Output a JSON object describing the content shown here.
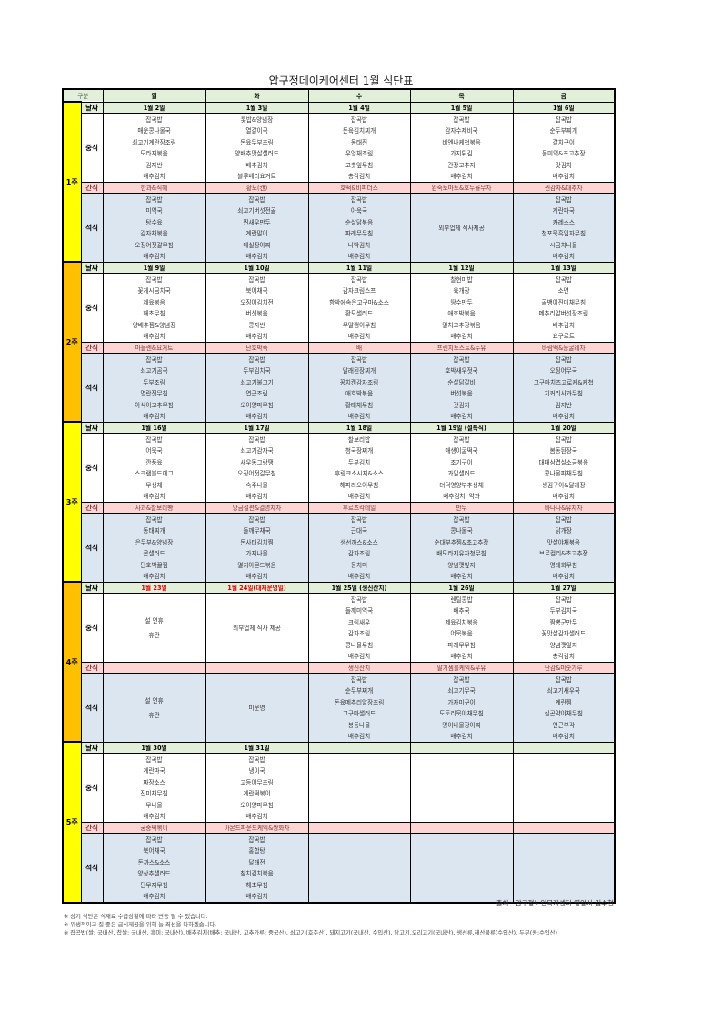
{
  "title": "압구정데이케어센터 1월 식단표",
  "header": {
    "gubun": "구분",
    "days": [
      "월",
      "화",
      "수",
      "목",
      "금"
    ]
  },
  "categories": {
    "date": "날짜",
    "lunch": "중식",
    "snack": "간식",
    "dinner": "석식"
  },
  "colors": {
    "week_odd": "#ffff00",
    "week_even": "#ffc000",
    "header_bg": "#e2f0d9",
    "snack_bg": "#fcd5d4",
    "dinner_bg": "#dce6f1",
    "holiday_text": "#e00000"
  },
  "weeks": [
    {
      "label": "1주",
      "days": [
        {
          "date": "1월 2일",
          "lunch": [
            "잡곡밥",
            "매운콩나물국",
            "쇠고기계란장조림",
            "도라지볶음",
            "김자반",
            "배추김치"
          ],
          "snack": "한과&식혜",
          "dinner": [
            "잡곡밥",
            "미역국",
            "탕수육",
            "감자채볶음",
            "오징어젓갈무침",
            "배추김치"
          ]
        },
        {
          "date": "1월 3일",
          "lunch": [
            "톳밥&양념장",
            "열갈이국",
            "돈육두부조림",
            "양배추맛살샐러드",
            "배추김치",
            "블루베리요거트"
          ],
          "snack": "황도(캔)",
          "dinner": [
            "잡곡밥",
            "쇠고기버섯전골",
            "찐새우만두",
            "계란말이",
            "매실장아찌",
            "배추김치"
          ]
        },
        {
          "date": "1월 4일",
          "lunch": [
            "잡곡밥",
            "돈육김치찌개",
            "동태전",
            "우엉채조림",
            "고춧잎무침",
            "총각김치"
          ],
          "snack": "호떡&비피더스",
          "dinner": [
            "잡곡밥",
            "아욱국",
            "순살닭볶음",
            "파래무무침",
            "나박김치",
            "배추김치"
          ]
        },
        {
          "date": "1월 5일",
          "lunch": [
            "잡곡밥",
            "감자수제비국",
            "비엔나케첩볶음",
            "가지튀김",
            "간장고추지",
            "배추김치"
          ],
          "snack": "완숙토마토&호두율무차",
          "dinner": [
            "외부업체 식사제공"
          ]
        },
        {
          "date": "1월 6일",
          "lunch": [
            "잡곡밥",
            "순두부찌개",
            "갈치구이",
            "물미역&초고추장",
            "갓김치",
            "배추김치"
          ],
          "snack": "찐감자&대추차",
          "dinner": [
            "잡곡밥",
            "계란파국",
            "카레소스",
            "청포묵흑임자무침",
            "시금치나물",
            "배추김치"
          ]
        }
      ]
    },
    {
      "label": "2주",
      "days": [
        {
          "date": "1월 9일",
          "lunch": [
            "잡곡밥",
            "꽃게시금치국",
            "제육볶음",
            "해초무침",
            "양배추찜&양념장",
            "배추김치"
          ],
          "snack": "마들렌&요거트",
          "dinner": [
            "잡곡밥",
            "쇠고기곰국",
            "두부조림",
            "명란젓무침",
            "아삭이고추무침",
            "배추김치"
          ]
        },
        {
          "date": "1월 10일",
          "lunch": [
            "잡곡밥",
            "북어채국",
            "오징어김치전",
            "버섯볶음",
            "콩자반",
            "배추김치"
          ],
          "snack": "단호박죽",
          "dinner": [
            "잡곡밥",
            "두부김치국",
            "쇠고기불고기",
            "연근조림",
            "오이양파무침",
            "배추김치"
          ]
        },
        {
          "date": "1월 11일",
          "lunch": [
            "잡곡밥",
            "감자크림스프",
            "함박에속은고구마&소스",
            "황도샐러드",
            "무말랭이무침",
            "배추김치"
          ],
          "snack": "배",
          "dinner": [
            "잡곡밥",
            "달래된장찌개",
            "꽁치캔감자조림",
            "애호박볶음",
            "황태채무침",
            "배추김치"
          ]
        },
        {
          "date": "1월 12일",
          "lunch": [
            "찰현미밥",
            "육개장",
            "땅수만두",
            "애호박볶음",
            "멸치고추장볶음",
            "배추김치"
          ],
          "snack": "프렌치토스트&두유",
          "dinner": [
            "잡곡밥",
            "호박새우젓국",
            "순살닭갈비",
            "버섯볶음",
            "갓김치",
            "배추김치"
          ]
        },
        {
          "date": "1월 13일",
          "lunch": [
            "잡곡밥",
            "소면",
            "골뱅이진미채무침",
            "메추리알버섯장조림",
            "배추김치",
            "요구르트"
          ],
          "snack": "바람떡&둥굴레차",
          "dinner": [
            "잡곡밥",
            "오징어무국",
            "고구마치즈고로케&케첩",
            "치커리사과무침",
            "김자반",
            "배추김치"
          ]
        }
      ]
    },
    {
      "label": "3주",
      "days": [
        {
          "date": "1월 16일",
          "lunch": [
            "잡곡밥",
            "어묵국",
            "깐풍육",
            "스크램블드에그",
            "무생채",
            "배추김치"
          ],
          "snack": "사과&찰보리빵",
          "dinner": [
            "잡곡밥",
            "동태찌개",
            "은두부&양념장",
            "콘샐러드",
            "단호박꿀찜",
            "배추김치"
          ]
        },
        {
          "date": "1월 17일",
          "lunch": [
            "잡곡밥",
            "쇠고기감자국",
            "새우동그랑땡",
            "오징어젓갈무침",
            "숙주나물",
            "배추김치"
          ],
          "snack": "앙금절편&결명자차",
          "dinner": [
            "잡곡밥",
            "들깨무채국",
            "돈사태김치찜",
            "가지나물",
            "멸치아몬드볶음",
            "배추김치"
          ]
        },
        {
          "date": "1월 18일",
          "lunch": [
            "찰보리밥",
            "청국장찌개",
            "두부김치",
            "후랑크소시지&소스",
            "해파리오이무침",
            "배추김치"
          ],
          "snack": "후르츠칵테일",
          "dinner": [
            "잡곡밥",
            "근대국",
            "생선까스&소스",
            "감자조림",
            "동치미",
            "배추김치"
          ]
        },
        {
          "date": "1월 19일 (설특식)",
          "lunch": [
            "잡곡밥",
            "매생이굴떡국",
            "조기구이",
            "과일샐러드",
            "더덕영양부추생채",
            "배추김치, 약과"
          ],
          "snack": "만두",
          "dinner": [
            "잡곡밥",
            "콩나물국",
            "순대부추찜&초고추장",
            "배도라지유자청무침",
            "양념깻잎지",
            "배추김치"
          ]
        },
        {
          "date": "1월 20일",
          "lunch": [
            "잡곡밥",
            "봄동된장국",
            "대패삼겹살소금볶음",
            "콩나물파채무침",
            "생김구이&달래장",
            "배추김치"
          ],
          "snack": "바나나&유자차",
          "dinner": [
            "잡곡밥",
            "닭개장",
            "맛살야채볶음",
            "브로컬리&초고추장",
            "명태회무침",
            "배추김치"
          ]
        }
      ]
    },
    {
      "label": "4주",
      "days": [
        {
          "date": "1월 23일",
          "date_red": true,
          "lunch": [
            "설 연휴",
            "휴관"
          ],
          "snack": "",
          "dinner": [
            "설 연휴",
            "휴관"
          ]
        },
        {
          "date": "1월 24일(대체운영일)",
          "date_red": true,
          "lunch": [
            "외부업체 식사 제공"
          ],
          "snack": "",
          "dinner": [
            "미운영"
          ]
        },
        {
          "date": "1월 25일 (생신잔치)",
          "lunch": [
            "잡곡밥",
            "들깨미역국",
            "크림새우",
            "감자조림",
            "콩나물무침",
            "배추김치"
          ],
          "snack": "생신잔치",
          "dinner": [
            "잡곡밥",
            "순두부찌개",
            "돈육메추리알장조림",
            "고구마샐러드",
            "봉동나물",
            "배추김치"
          ]
        },
        {
          "date": "1월 26일",
          "lunch": [
            "렌틸콩밥",
            "배추국",
            "제육김치볶음",
            "어묵볶음",
            "파래무무침",
            "배추김치"
          ],
          "snack": "딸기젬롤케익&우유",
          "dinner": [
            "잡곡밥",
            "쇠고기무국",
            "가자미구이",
            "도토리묵야채무침",
            "명이나물장아찌",
            "배추김치"
          ]
        },
        {
          "date": "1월 27일",
          "lunch": [
            "잡곡밥",
            "두부김치국",
            "짬뽕군만두",
            "꽃맛살감자샐러드",
            "양념깻잎지",
            "총각김치"
          ],
          "snack": "단감&미숫가루",
          "dinner": [
            "잡곡밥",
            "쇠고기새우국",
            "계란찜",
            "실곤약야채무침",
            "연근부각",
            "배추김치"
          ]
        }
      ]
    },
    {
      "label": "5주",
      "days": [
        {
          "date": "1월 30일",
          "lunch": [
            "잡곡밥",
            "계란파국",
            "짜장소스",
            "진미채무침",
            "무나물",
            "배추김치"
          ],
          "snack": "궁중떡볶이",
          "dinner": [
            "잡곡밥",
            "북어채국",
            "돈까스&소스",
            "양상추샐러드",
            "단무지무침",
            "배추김치"
          ]
        },
        {
          "date": "1월 31일",
          "lunch": [
            "잡곡밥",
            "냉이국",
            "고등어무조림",
            "계란떡볶이",
            "오이양파무침",
            "배추김치"
          ],
          "snack": "아몬드파운드케익&쌍화차",
          "dinner": [
            "잡곡밥",
            "홍합탕",
            "달래전",
            "참치김치볶음",
            "해초무침",
            "배추김치"
          ]
        },
        {
          "date": "",
          "lunch": [],
          "snack": "",
          "dinner": []
        },
        {
          "date": "",
          "lunch": [],
          "snack": "",
          "dinner": []
        },
        {
          "date": "",
          "lunch": [],
          "snack": "",
          "dinner": []
        }
      ]
    }
  ],
  "source": "출처 : 압구정노인복지센터 영양사 김수현",
  "notes": [
    "※ 상기 식단은 식재료 수급상황에 따라 변동 될 수 있습니다.",
    "※ 위생적이고 질 좋은 급식제공을 위해 늘 최선을 다하겠습니다.",
    "※ 잡곡밥(쌀: 국내산, 찹쌀: 국내산, 흑미: 국내산), 배추김치(배추: 국내산, 고추가루: 중국산), 쇠고기(호주산), 돼지고기(국내산, 수입산), 닭고기,오리고기(국내산), 생선류,해산물류(수입산), 두부(콩:수입산)"
  ]
}
